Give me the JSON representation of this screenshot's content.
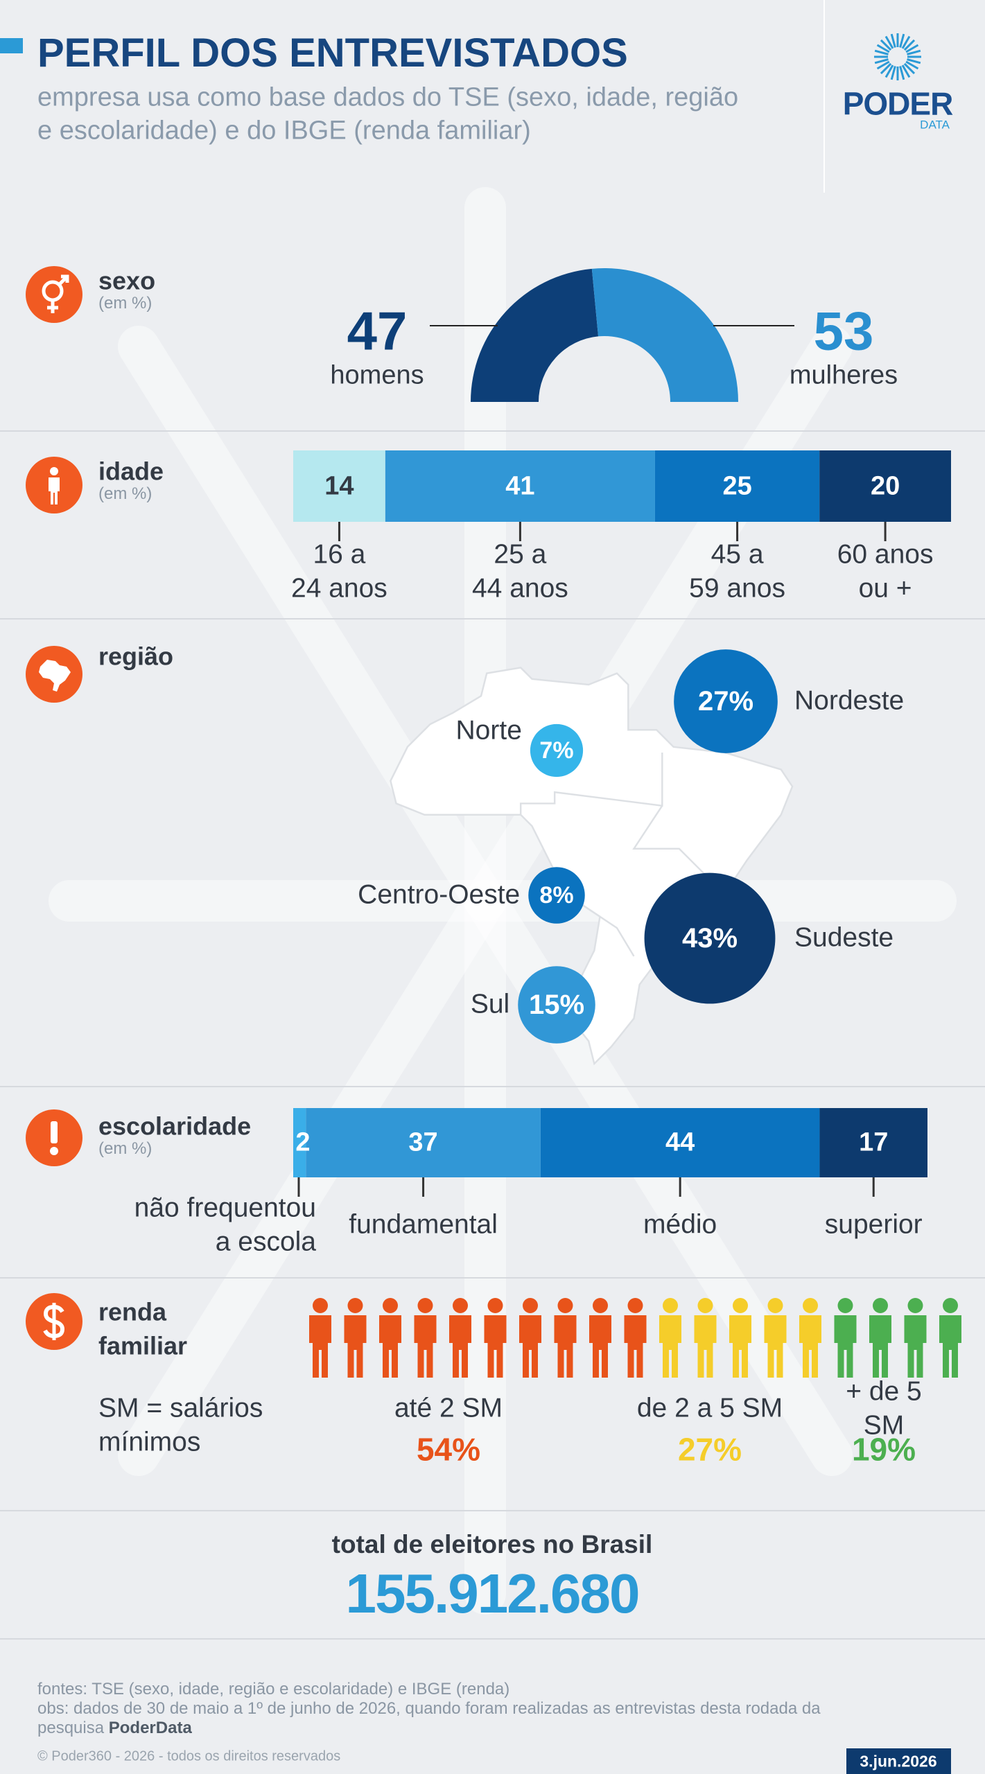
{
  "header": {
    "title": "PERFIL DOS ENTREVISTADOS",
    "subtitle": "empresa usa como base dados do TSE (sexo, idade, região\ne escolaridade) e do IBGE (renda familiar)",
    "logo": "PODER",
    "logo_sub": "DATA"
  },
  "chart_data": [
    {
      "type": "semi-donut",
      "title": "sexo",
      "subtitle": "(em %)",
      "categories": [
        "homens",
        "mulheres"
      ],
      "values": [
        47,
        53
      ],
      "colors": [
        "#0d3f78",
        "#2a8fd0"
      ]
    },
    {
      "type": "stacked-bar",
      "title": "idade",
      "subtitle": "(em %)",
      "categories": [
        "16 a\n24 anos",
        "25 a\n44 anos",
        "45 a\n59 anos",
        "60 anos\nou +"
      ],
      "values": [
        14,
        41,
        25,
        20
      ],
      "colors": [
        "#b5e8ef",
        "#3197d6",
        "#0b73bf",
        "#0d3a6e"
      ]
    },
    {
      "type": "bubble",
      "title": "região",
      "categories": [
        "Norte",
        "Nordeste",
        "Centro-Oeste",
        "Sudeste",
        "Sul"
      ],
      "values": [
        7,
        27,
        8,
        43,
        15
      ],
      "value_labels": [
        "7%",
        "27%",
        "8%",
        "43%",
        "15%"
      ],
      "colors": [
        "#35b5ea",
        "#0b73bf",
        "#0b73bf",
        "#0d3a6e",
        "#3197d6"
      ]
    },
    {
      "type": "stacked-bar",
      "title": "escolaridade",
      "subtitle": "(em %)",
      "categories": [
        "não frequentou\na escola",
        "fundamental",
        "médio",
        "superior"
      ],
      "values": [
        2,
        37,
        44,
        17
      ],
      "colors": [
        "#3aaee8",
        "#3197d6",
        "#0b73bf",
        "#0d3a6e"
      ]
    },
    {
      "type": "pictogram",
      "title": "renda\nfamiliar",
      "note": "SM = salários\nmínimos",
      "categories": [
        "até 2 SM",
        "de 2 a 5 SM",
        "+ de 5 SM"
      ],
      "values": [
        54,
        27,
        19
      ],
      "value_labels": [
        "54%",
        "27%",
        "19%"
      ],
      "colors": [
        "#e8531a",
        "#f5cd2a",
        "#4caf50"
      ]
    }
  ],
  "total": {
    "label": "total de eleitores no Brasil",
    "value": 155912680,
    "value_label": "155.912.680"
  },
  "footer": {
    "sources": "fontes: TSE (sexo, idade, região e escolaridade) e IBGE (renda)",
    "obs": "obs: dados de 30 de maio a 1º de junho de 2026, quando foram realizadas as entrevistas desta rodada da\npesquisa ",
    "obs_brand": "PoderData",
    "copyright": "© Poder360 - 2026 - todos os direitos reservados",
    "date": "3.jun.2026"
  }
}
